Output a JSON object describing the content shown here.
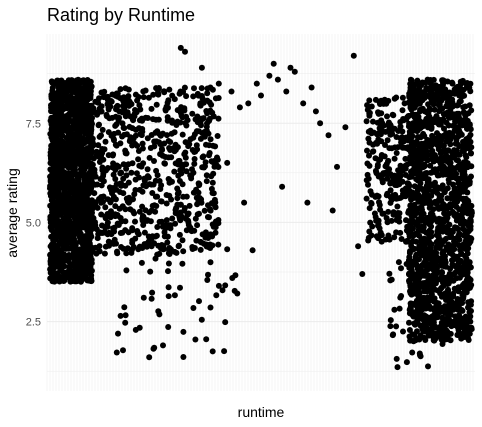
{
  "chart_data": {
    "type": "scatter",
    "title": "Rating by Runtime",
    "xlabel": "runtime",
    "ylabel": "average rating",
    "ylim": [
      0.75,
      9.75
    ],
    "y_ticks": [
      2.5,
      5.0,
      7.5
    ],
    "y_tick_labels": [
      "2.5",
      "5.0",
      "7.5"
    ],
    "x_tick_labels": [],
    "grid": true,
    "legend": "none",
    "point_color": "#000000",
    "panel_color": "#ffffff",
    "grid_color": "#ebebeb",
    "series": [
      {
        "clusters": [
          {
            "x": [
              0.0,
              0.1
            ],
            "y": [
              3.5,
              8.6
            ],
            "n": 1500
          },
          {
            "x": [
              0.1,
              0.4
            ],
            "y": [
              4.2,
              8.4
            ],
            "n": 700
          },
          {
            "x": [
              0.15,
              0.45
            ],
            "y": [
              1.5,
              4.5
            ],
            "n": 60
          },
          {
            "x": [
              0.85,
              1.0
            ],
            "y": [
              2.0,
              8.6
            ],
            "n": 1400
          },
          {
            "x": [
              0.75,
              0.88
            ],
            "y": [
              4.5,
              8.2
            ],
            "n": 300
          },
          {
            "x": [
              0.8,
              0.95
            ],
            "y": [
              1.2,
              4.0
            ],
            "n": 60
          }
        ],
        "x": [
          0.31,
          0.32,
          0.36,
          0.38,
          0.4,
          0.43,
          0.45,
          0.47,
          0.49,
          0.5,
          0.52,
          0.54,
          0.56,
          0.58,
          0.6,
          0.62,
          0.64,
          0.66,
          0.68,
          0.7,
          0.72,
          0.42,
          0.46,
          0.55,
          0.61,
          0.67,
          0.73,
          0.53,
          0.57,
          0.74,
          0.48,
          0.63
        ],
        "y": [
          9.4,
          9.3,
          8.9,
          8.4,
          8.5,
          8.3,
          7.9,
          8.0,
          8.5,
          8.2,
          8.7,
          8.6,
          8.3,
          8.8,
          8.0,
          8.4,
          7.5,
          7.2,
          6.4,
          7.4,
          9.2,
          6.5,
          5.5,
          5.9,
          5.5,
          5.3,
          4.4,
          9.0,
          8.9,
          3.7,
          4.3,
          7.8
        ]
      }
    ]
  }
}
